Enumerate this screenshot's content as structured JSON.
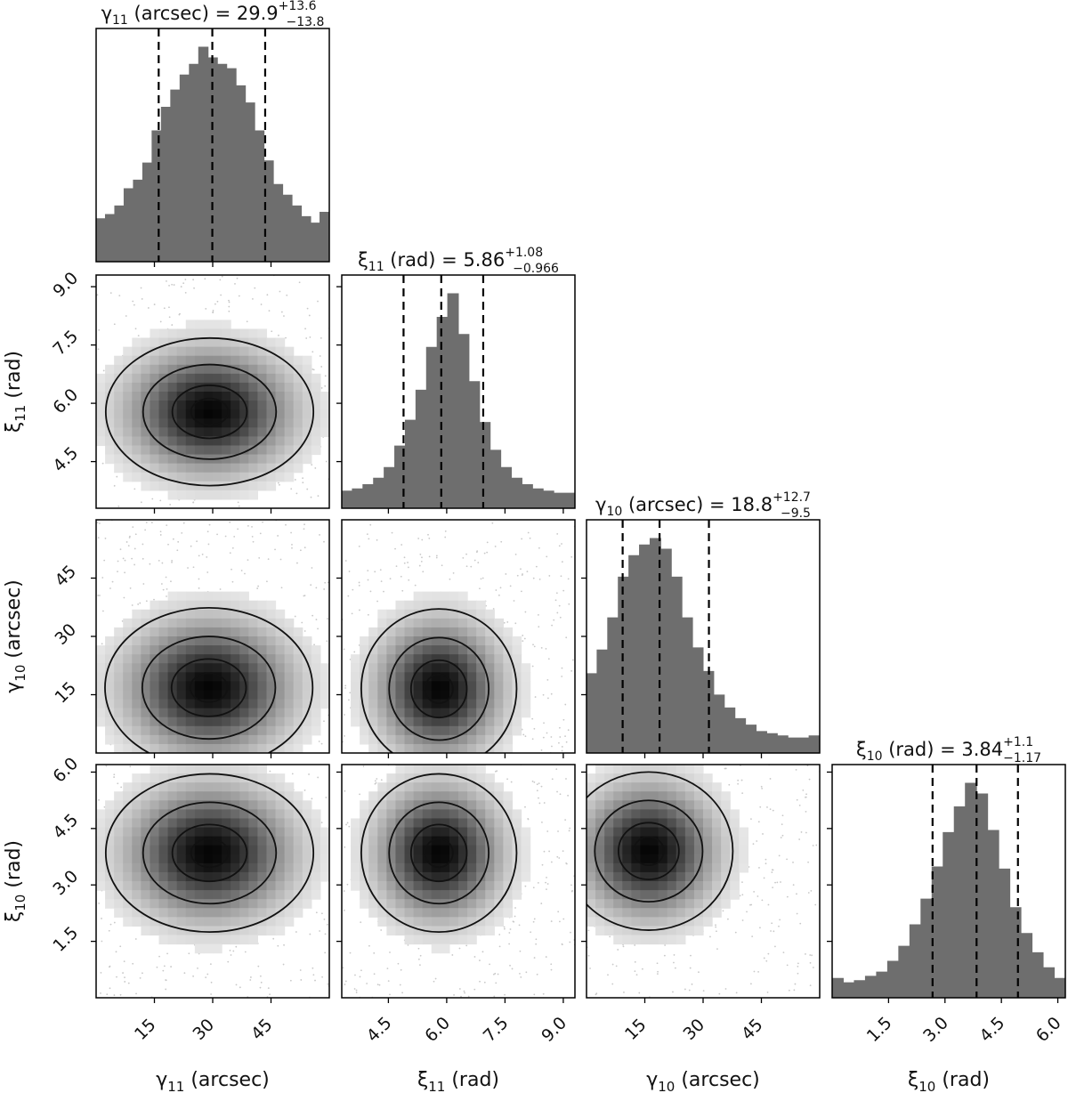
{
  "chart_data": {
    "type": "corner",
    "parameters": [
      {
        "id": "g11",
        "symbol": "γ",
        "subscript": "11",
        "unit": "(arcsec)",
        "axis_label": "γ11 (arcsec)",
        "title_value": "29.9",
        "title_plus": "+13.6",
        "title_minus": "−13.8",
        "median": 29.9,
        "q_low": 16.1,
        "q_high": 43.5,
        "range": [
          0,
          60
        ],
        "ticks": [
          15,
          30,
          45
        ],
        "tick_labels": [
          "15",
          "30",
          "45"
        ],
        "histogram": [
          0.2,
          0.22,
          0.26,
          0.34,
          0.38,
          0.46,
          0.61,
          0.72,
          0.8,
          0.87,
          0.92,
          1.0,
          0.95,
          0.92,
          0.9,
          0.82,
          0.74,
          0.61,
          0.47,
          0.36,
          0.31,
          0.26,
          0.21,
          0.18,
          0.23
        ]
      },
      {
        "id": "x11",
        "symbol": "ξ",
        "subscript": "11",
        "unit": "(rad)",
        "axis_label": "ξ11 (rad)",
        "title_value": "5.86",
        "title_plus": "+1.08",
        "title_minus": "−0.966",
        "median": 5.86,
        "q_low": 4.89,
        "q_high": 6.94,
        "range": [
          3.3,
          9.3
        ],
        "ticks": [
          4.5,
          6.0,
          7.5,
          9.0
        ],
        "tick_labels": [
          "4.5",
          "6.0",
          "7.5",
          "9.0"
        ],
        "histogram": [
          0.08,
          0.09,
          0.11,
          0.14,
          0.19,
          0.29,
          0.41,
          0.55,
          0.75,
          0.89,
          1.0,
          0.81,
          0.59,
          0.4,
          0.27,
          0.19,
          0.14,
          0.11,
          0.09,
          0.08,
          0.07,
          0.07
        ]
      },
      {
        "id": "g10",
        "symbol": "γ",
        "subscript": "10",
        "unit": "(arcsec)",
        "axis_label": "γ10 (arcsec)",
        "title_value": "18.8",
        "title_plus": "+12.7",
        "title_minus": "−9.5",
        "median": 18.8,
        "q_low": 9.3,
        "q_high": 31.5,
        "range": [
          0,
          60
        ],
        "ticks": [
          15,
          30,
          45
        ],
        "tick_labels": [
          "15",
          "30",
          "45"
        ],
        "histogram": [
          0.37,
          0.48,
          0.63,
          0.82,
          0.92,
          0.97,
          1.0,
          0.95,
          0.82,
          0.63,
          0.49,
          0.38,
          0.27,
          0.21,
          0.16,
          0.13,
          0.1,
          0.09,
          0.08,
          0.07,
          0.07,
          0.08
        ]
      },
      {
        "id": "x10",
        "symbol": "ξ",
        "subscript": "10",
        "unit": "(rad)",
        "axis_label": "ξ10 (rad)",
        "title_value": "3.84",
        "title_plus": "+1.1",
        "title_minus": "−1.17",
        "median": 3.84,
        "q_low": 2.67,
        "q_high": 4.94,
        "range": [
          0,
          6.2
        ],
        "ticks": [
          1.5,
          3.0,
          4.5,
          6.0
        ],
        "tick_labels": [
          "1.5",
          "3.0",
          "4.5",
          "6.0"
        ],
        "histogram": [
          0.09,
          0.07,
          0.08,
          0.1,
          0.12,
          0.17,
          0.24,
          0.34,
          0.46,
          0.61,
          0.77,
          0.89,
          1.0,
          0.95,
          0.78,
          0.6,
          0.42,
          0.3,
          0.21,
          0.14,
          0.09
        ]
      }
    ],
    "joint_2d": [
      {
        "row": 1,
        "col": 0,
        "peak": [
          29.2,
          5.78
        ]
      },
      {
        "row": 2,
        "col": 0,
        "peak": [
          29.0,
          16.8
        ]
      },
      {
        "row": 2,
        "col": 1,
        "peak": [
          5.8,
          16.5
        ]
      },
      {
        "row": 3,
        "col": 0,
        "peak": [
          29.2,
          3.85
        ]
      },
      {
        "row": 3,
        "col": 1,
        "peak": [
          5.8,
          3.85
        ]
      },
      {
        "row": 3,
        "col": 2,
        "peak": [
          16.0,
          3.9
        ]
      }
    ],
    "contour_levels": 4,
    "quantiles": [
      0.16,
      0.5,
      0.84
    ]
  }
}
